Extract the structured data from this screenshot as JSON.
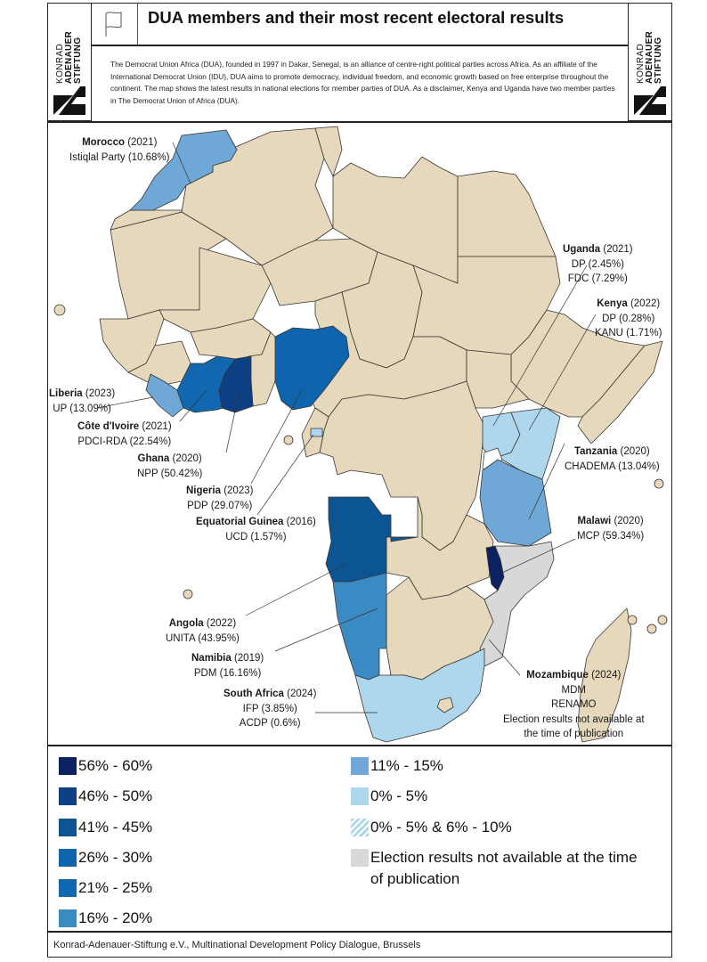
{
  "header": {
    "title": "DUA members and their most recent electoral results",
    "description": "The Democrat Union Africa (DUA), founded in 1997 in Dakar, Senegal, is an alliance of centre-right political parties across Africa. As an affiliate of the International Democrat Union (IDU), DUA aims to promote democracy, individual freedom, and economic growth based on free enterprise throughout the continent. The map shows the latest results in national elections for member parties of DUA. As a disclaimer, Kenya and Uganda have two member parties in The Democrat Union of Africa (DUA).",
    "flag_icon": "flag-icon",
    "logo": {
      "line1": "KONRAD",
      "line2": "ADENAUER",
      "line3": "STIFTUNG"
    }
  },
  "colors": {
    "other_country": "#e6d8bd",
    "c56_60": "#0c2260",
    "c46_50": "#0d3f85",
    "c41_45": "#0c5593",
    "c26_30": "#0f65ad",
    "c21_25": "#1167b0",
    "c16_20": "#3a8bc4",
    "c11_15": "#6fa8d6",
    "c0_5": "#aed6ec",
    "na": "#d8d8d8",
    "border": "#3a3530"
  },
  "countries": [
    {
      "name": "Morocco",
      "year": "(2021)",
      "results": [
        "Istiqlal Party (10.68%)"
      ]
    },
    {
      "name": "Uganda",
      "year": "(2021)",
      "results": [
        "DP (2.45%)",
        "FDC (7.29%)"
      ]
    },
    {
      "name": "Kenya",
      "year": "(2022)",
      "results": [
        "DP (0.28%)",
        "KANU (1.71%)"
      ]
    },
    {
      "name": "Liberia",
      "year": "(2023)",
      "results": [
        "UP (13.09%)"
      ]
    },
    {
      "name": "Côte d'Ivoire",
      "year": "(2021)",
      "results": [
        "PDCI-RDA (22.54%)"
      ]
    },
    {
      "name": "Ghana",
      "year": "(2020)",
      "results": [
        "NPP (50.42%)"
      ]
    },
    {
      "name": "Nigeria",
      "year": "(2023)",
      "results": [
        "PDP (29.07%)"
      ]
    },
    {
      "name": "Equatorial Guinea",
      "year": "(2016)",
      "results": [
        "UCD (1.57%)"
      ]
    },
    {
      "name": "Tanzania",
      "year": "(2020)",
      "results": [
        "CHADEMA (13.04%)"
      ]
    },
    {
      "name": "Malawi",
      "year": "(2020)",
      "results": [
        "MCP (59.34%)"
      ]
    },
    {
      "name": "Angola",
      "year": "(2022)",
      "results": [
        "UNITA (43.95%)"
      ]
    },
    {
      "name": "Namibia",
      "year": "(2019)",
      "results": [
        "PDM (16.16%)"
      ]
    },
    {
      "name": "South Africa",
      "year": "(2024)",
      "results": [
        "IFP (3.85%)",
        "ACDP (0.6%)"
      ]
    },
    {
      "name": "Mozambique",
      "year": "(2024)",
      "results": [
        "MDM",
        "RENAMO",
        "Election results not available at",
        "the time of publication"
      ]
    }
  ],
  "legend": [
    {
      "label": "56% - 60%",
      "color": "#0c2260"
    },
    {
      "label": "46% - 50%",
      "color": "#0d3f85"
    },
    {
      "label": "41% - 45%",
      "color": "#0c5593"
    },
    {
      "label": "26% - 30%",
      "color": "#0f65ad"
    },
    {
      "label": "21% - 25%",
      "color": "#1167b0"
    },
    {
      "label": "16% - 20%",
      "color": "#3a8bc4"
    },
    {
      "label": "11% - 15%",
      "color": "#6fa8d6"
    },
    {
      "label": "0% - 5%",
      "color": "#aed6ec"
    },
    {
      "label": "0% - 5% & 6% - 10%",
      "color": "hatched"
    },
    {
      "label": "Election results not available at the time of publication",
      "color": "#d8d8d8"
    }
  ],
  "footer": "Konrad-Adenauer-Stiftung e.V., Multinational Development Policy Dialogue, Brussels"
}
